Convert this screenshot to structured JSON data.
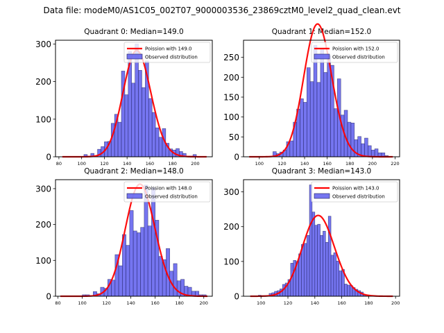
{
  "suptitle": "Data file: modeM0/AS1C05_002T07_9000003536_23869cztM0_level2_quad_clean.evt",
  "colors": {
    "bar_fill": "#6666ee",
    "bar_edge": "#1a1a55",
    "curve": "#ff0000"
  },
  "chart_data": [
    {
      "type": "bar",
      "title": "Quadrant 0: Median=149.0",
      "xlabel": "",
      "ylabel": "",
      "xlim": [
        77,
        215
      ],
      "ylim": [
        0,
        310
      ],
      "xticks": [
        80,
        100,
        120,
        140,
        160,
        180,
        200
      ],
      "yticks": [
        0,
        100,
        200,
        300
      ],
      "legend": {
        "placement": "top-right",
        "entries": [
          "Poission with 149.0",
          "Observed distribution"
        ]
      },
      "bin_start": 102,
      "bin_width": 3,
      "values": [
        6,
        2,
        9,
        2,
        20,
        27,
        40,
        41,
        89,
        113,
        92,
        228,
        165,
        280,
        196,
        300,
        230,
        184,
        255,
        155,
        118,
        77,
        52,
        75,
        36,
        21,
        18,
        22,
        14,
        9,
        2,
        2,
        6
      ],
      "poisson_mean": 149.0,
      "poisson_x": [
        83,
        210
      ]
    },
    {
      "type": "bar",
      "title": "Quadrant 1: Median=152.0",
      "xlabel": "",
      "ylabel": "",
      "xlim": [
        86,
        224
      ],
      "ylim": [
        0,
        293
      ],
      "xticks": [
        100,
        120,
        140,
        160,
        180,
        200,
        220
      ],
      "yticks": [
        0,
        50,
        100,
        150,
        200,
        250
      ],
      "legend": {
        "placement": "top-right",
        "entries": [
          "Poission with 152.0",
          "Observed distribution"
        ]
      },
      "bin_start": 112,
      "bin_width": 3,
      "values": [
        13,
        8,
        12,
        17,
        38,
        40,
        87,
        120,
        146,
        137,
        224,
        189,
        280,
        187,
        273,
        212,
        254,
        230,
        121,
        196,
        105,
        117,
        87,
        85,
        43,
        51,
        33,
        47,
        28,
        17,
        20,
        10,
        10,
        3
      ],
      "poisson_mean": 152.0,
      "poisson_x": [
        91,
        218
      ]
    },
    {
      "type": "bar",
      "title": "Quadrant 2: Median=148.0",
      "xlabel": "",
      "ylabel": "",
      "xlim": [
        78,
        207
      ],
      "ylim": [
        0,
        325
      ],
      "xticks": [
        80,
        100,
        120,
        140,
        160,
        180,
        200
      ],
      "yticks": [
        0,
        100,
        200,
        300
      ],
      "legend": {
        "placement": "top-right",
        "entries": [
          "Poission with 148.0",
          "Observed distribution"
        ]
      },
      "bin_start": 100,
      "bin_width": 3,
      "values": [
        4,
        4,
        0,
        13,
        7,
        25,
        22,
        47,
        45,
        116,
        85,
        172,
        142,
        239,
        182,
        177,
        192,
        310,
        196,
        303,
        212,
        111,
        102,
        133,
        70,
        91,
        43,
        47,
        28,
        25,
        14,
        14,
        4,
        4
      ],
      "poisson_mean": 148.0,
      "poisson_x": [
        82,
        203
      ]
    },
    {
      "type": "bar",
      "title": "Quadrant 3: Median=143.0",
      "xlabel": "",
      "ylabel": "",
      "xlim": [
        87,
        203
      ],
      "ylim": [
        0,
        335
      ],
      "xticks": [
        100,
        120,
        140,
        160,
        180,
        200
      ],
      "yticks": [
        0,
        100,
        200,
        300
      ],
      "legend": {
        "placement": "top-right",
        "entries": [
          "Poission with 143.0",
          "Observed distribution"
        ]
      },
      "bin_start": 98,
      "bin_width": 2,
      "values": [
        3,
        2,
        2,
        2,
        8,
        10,
        14,
        16,
        21,
        34,
        38,
        48,
        95,
        103,
        100,
        122,
        149,
        152,
        175,
        320,
        242,
        204,
        207,
        175,
        187,
        155,
        230,
        118,
        125,
        101,
        73,
        77,
        35,
        32,
        31,
        25,
        20,
        16,
        12,
        3
      ],
      "poisson_mean": 143.0,
      "poisson_x": [
        92,
        198
      ]
    }
  ]
}
